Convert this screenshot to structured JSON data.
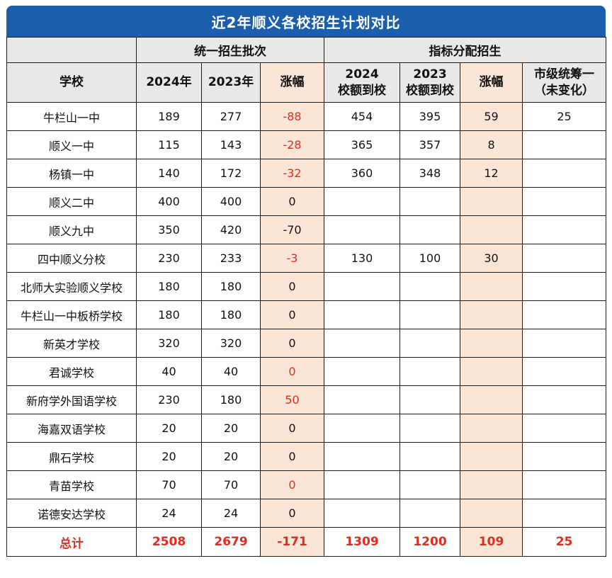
{
  "title": "近2年顺义各校招生计划对比",
  "group_headers": {
    "unified": "统一招生批次",
    "quota": "指标分配招生"
  },
  "columns": {
    "school": "学校",
    "y2024": "2024年",
    "y2023": "2023年",
    "change": "涨幅",
    "q2024": "2024\n校额到校",
    "q2023": "2023\n校额到校",
    "qchange": "涨幅",
    "city": "市级统筹一\n（未变化）"
  },
  "rows": [
    {
      "school": "牛栏山一中",
      "y2024": "189",
      "y2023": "277",
      "change": "-88",
      "change_red": true,
      "q2024": "454",
      "q2023": "395",
      "qchange": "59",
      "city": "25"
    },
    {
      "school": "顺义一中",
      "y2024": "115",
      "y2023": "143",
      "change": "-28",
      "change_red": true,
      "q2024": "365",
      "q2023": "357",
      "qchange": "8",
      "city": ""
    },
    {
      "school": "杨镇一中",
      "y2024": "140",
      "y2023": "172",
      "change": "-32",
      "change_red": true,
      "q2024": "360",
      "q2023": "348",
      "qchange": "12",
      "city": ""
    },
    {
      "school": "顺义二中",
      "y2024": "400",
      "y2023": "400",
      "change": "0",
      "change_red": false,
      "q2024": "",
      "q2023": "",
      "qchange": "",
      "city": ""
    },
    {
      "school": "顺义九中",
      "y2024": "350",
      "y2023": "420",
      "change": "-70",
      "change_red": false,
      "q2024": "",
      "q2023": "",
      "qchange": "",
      "city": ""
    },
    {
      "school": "四中顺义分校",
      "y2024": "230",
      "y2023": "233",
      "change": "-3",
      "change_red": true,
      "q2024": "130",
      "q2023": "100",
      "qchange": "30",
      "city": ""
    },
    {
      "school": "北师大实验顺义学校",
      "y2024": "180",
      "y2023": "180",
      "change": "0",
      "change_red": false,
      "q2024": "",
      "q2023": "",
      "qchange": "",
      "city": ""
    },
    {
      "school": "牛栏山一中板桥学校",
      "y2024": "180",
      "y2023": "180",
      "change": "0",
      "change_red": false,
      "q2024": "",
      "q2023": "",
      "qchange": "",
      "city": ""
    },
    {
      "school": "新英才学校",
      "y2024": "320",
      "y2023": "320",
      "change": "0",
      "change_red": false,
      "q2024": "",
      "q2023": "",
      "qchange": "",
      "city": ""
    },
    {
      "school": "君诚学校",
      "y2024": "40",
      "y2023": "40",
      "change": "0",
      "change_red": true,
      "q2024": "",
      "q2023": "",
      "qchange": "",
      "city": ""
    },
    {
      "school": "新府学外国语学校",
      "y2024": "230",
      "y2023": "180",
      "change": "50",
      "change_red": true,
      "q2024": "",
      "q2023": "",
      "qchange": "",
      "city": ""
    },
    {
      "school": "海嘉双语学校",
      "y2024": "20",
      "y2023": "20",
      "change": "0",
      "change_red": false,
      "q2024": "",
      "q2023": "",
      "qchange": "",
      "city": ""
    },
    {
      "school": "鼎石学校",
      "y2024": "20",
      "y2023": "20",
      "change": "0",
      "change_red": false,
      "q2024": "",
      "q2023": "",
      "qchange": "",
      "city": ""
    },
    {
      "school": "青苗学校",
      "y2024": "70",
      "y2023": "70",
      "change": "0",
      "change_red": true,
      "q2024": "",
      "q2023": "",
      "qchange": "",
      "city": ""
    },
    {
      "school": "诺德安达学校",
      "y2024": "24",
      "y2023": "24",
      "change": "0",
      "change_red": false,
      "q2024": "",
      "q2023": "",
      "qchange": "",
      "city": ""
    }
  ],
  "total": {
    "school": "总计",
    "y2024": "2508",
    "y2023": "2679",
    "change": "-171",
    "q2024": "1309",
    "q2023": "1200",
    "qchange": "109",
    "city": "25"
  },
  "colors": {
    "title_bg": "#1b5eab",
    "header_bg": "#e9e7e7",
    "change_col_bg": "#fbe5d6",
    "highlight_red": "#e02c21",
    "border": "#1c1c1c"
  },
  "chart_data": {
    "type": "table",
    "title": "近2年顺义各校招生计划对比",
    "column_groups": [
      {
        "label": "统一招生批次",
        "columns": [
          "2024年",
          "2023年",
          "涨幅"
        ]
      },
      {
        "label": "指标分配招生",
        "columns": [
          "2024校额到校",
          "2023校额到校",
          "涨幅",
          "市级统筹一（未变化）"
        ]
      }
    ],
    "columns": [
      "学校",
      "2024年",
      "2023年",
      "涨幅",
      "2024校额到校",
      "2023校额到校",
      "涨幅",
      "市级统筹一（未变化）"
    ],
    "rows": [
      [
        "牛栏山一中",
        189,
        277,
        -88,
        454,
        395,
        59,
        25
      ],
      [
        "顺义一中",
        115,
        143,
        -28,
        365,
        357,
        8,
        null
      ],
      [
        "杨镇一中",
        140,
        172,
        -32,
        360,
        348,
        12,
        null
      ],
      [
        "顺义二中",
        400,
        400,
        0,
        null,
        null,
        null,
        null
      ],
      [
        "顺义九中",
        350,
        420,
        -70,
        null,
        null,
        null,
        null
      ],
      [
        "四中顺义分校",
        230,
        233,
        -3,
        130,
        100,
        30,
        null
      ],
      [
        "北师大实验顺义学校",
        180,
        180,
        0,
        null,
        null,
        null,
        null
      ],
      [
        "牛栏山一中板桥学校",
        180,
        180,
        0,
        null,
        null,
        null,
        null
      ],
      [
        "新英才学校",
        320,
        320,
        0,
        null,
        null,
        null,
        null
      ],
      [
        "君诚学校",
        40,
        40,
        0,
        null,
        null,
        null,
        null
      ],
      [
        "新府学外国语学校",
        230,
        180,
        50,
        null,
        null,
        null,
        null
      ],
      [
        "海嘉双语学校",
        20,
        20,
        0,
        null,
        null,
        null,
        null
      ],
      [
        "鼎石学校",
        20,
        20,
        0,
        null,
        null,
        null,
        null
      ],
      [
        "青苗学校",
        70,
        70,
        0,
        null,
        null,
        null,
        null
      ],
      [
        "诺德安达学校",
        24,
        24,
        0,
        null,
        null,
        null,
        null
      ]
    ],
    "total_row": [
      "总计",
      2508,
      2679,
      -171,
      1309,
      1200,
      109,
      25
    ]
  }
}
